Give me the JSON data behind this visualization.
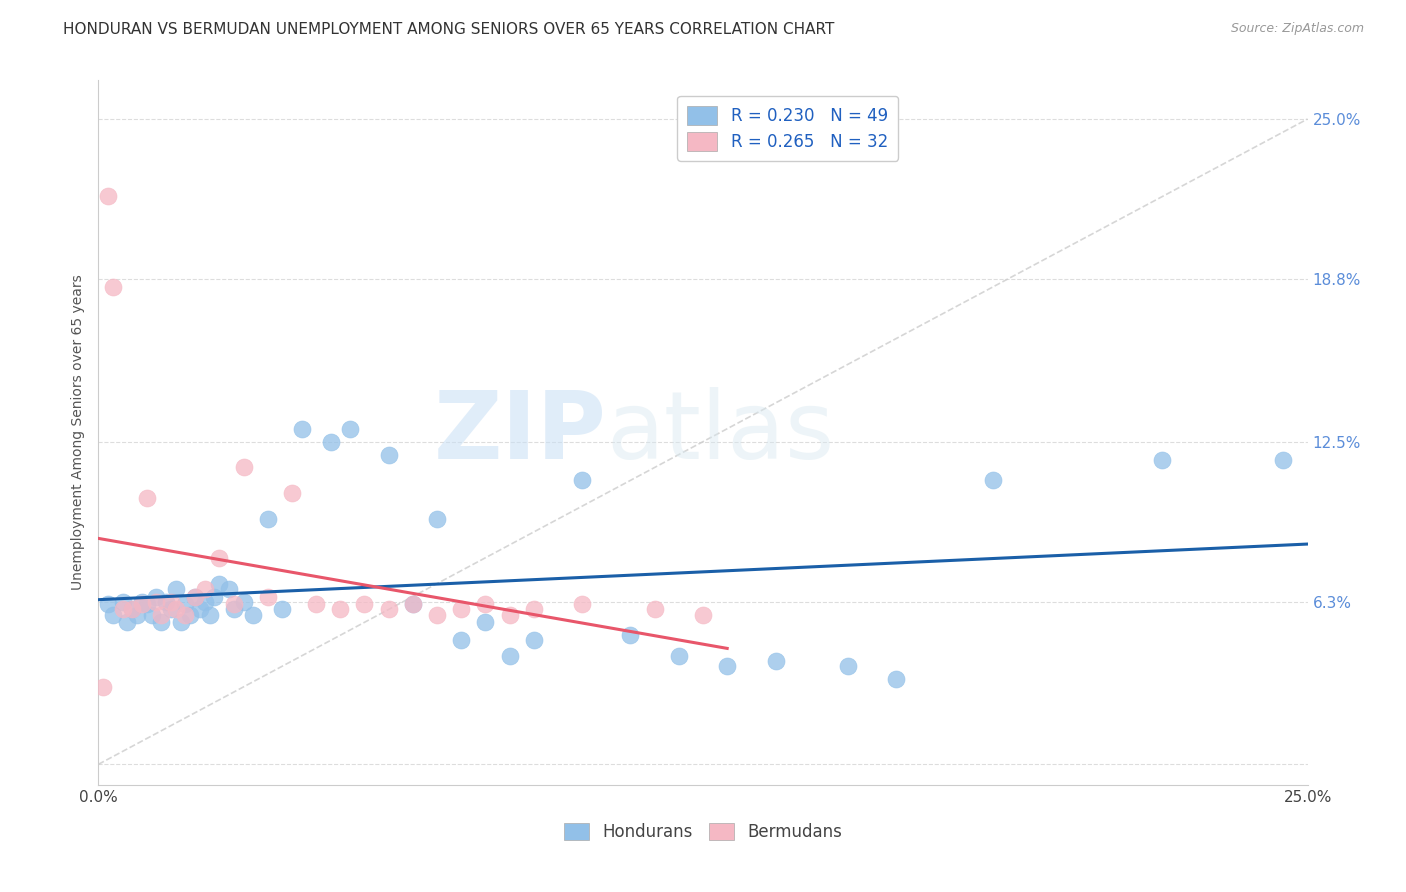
{
  "title": "HONDURAN VS BERMUDAN UNEMPLOYMENT AMONG SENIORS OVER 65 YEARS CORRELATION CHART",
  "source": "Source: ZipAtlas.com",
  "ylabel": "Unemployment Among Seniors over 65 years",
  "xlim": [
    0.0,
    0.25
  ],
  "ylim": [
    -0.008,
    0.265
  ],
  "xticks": [
    0.0,
    0.05,
    0.1,
    0.15,
    0.2,
    0.25
  ],
  "xticklabels": [
    "0.0%",
    "",
    "",
    "",
    "",
    "25.0%"
  ],
  "ytick_positions": [
    0.0,
    0.063,
    0.125,
    0.188,
    0.25
  ],
  "yticklabels_right": [
    "",
    "6.3%",
    "12.5%",
    "18.8%",
    "25.0%"
  ],
  "watermark_zip": "ZIP",
  "watermark_atlas": "atlas",
  "legend_R_honduran": "R = 0.230",
  "legend_N_honduran": "N = 49",
  "legend_R_bermudan": "R = 0.265",
  "legend_N_bermudan": "N = 32",
  "honduran_color": "#92c0e8",
  "bermudan_color": "#f5b8c4",
  "trend_honduran_color": "#1a5fa8",
  "trend_bermudan_color": "#e8566a",
  "diagonal_color": "#cccccc",
  "background_color": "#ffffff",
  "grid_color": "#dddddd",
  "hondurans_x": [
    0.002,
    0.003,
    0.005,
    0.006,
    0.007,
    0.008,
    0.009,
    0.01,
    0.011,
    0.012,
    0.013,
    0.014,
    0.015,
    0.016,
    0.017,
    0.018,
    0.019,
    0.02,
    0.021,
    0.022,
    0.023,
    0.024,
    0.025,
    0.027,
    0.028,
    0.03,
    0.032,
    0.035,
    0.038,
    0.042,
    0.048,
    0.052,
    0.06,
    0.065,
    0.07,
    0.075,
    0.08,
    0.085,
    0.09,
    0.1,
    0.11,
    0.12,
    0.13,
    0.14,
    0.155,
    0.165,
    0.185,
    0.22,
    0.245
  ],
  "hondurans_y": [
    0.062,
    0.058,
    0.063,
    0.055,
    0.06,
    0.058,
    0.063,
    0.062,
    0.058,
    0.065,
    0.055,
    0.063,
    0.06,
    0.068,
    0.055,
    0.062,
    0.058,
    0.065,
    0.06,
    0.063,
    0.058,
    0.065,
    0.07,
    0.068,
    0.06,
    0.063,
    0.058,
    0.095,
    0.06,
    0.13,
    0.125,
    0.13,
    0.12,
    0.062,
    0.095,
    0.048,
    0.055,
    0.042,
    0.048,
    0.11,
    0.05,
    0.042,
    0.038,
    0.04,
    0.038,
    0.033,
    0.11,
    0.118,
    0.118
  ],
  "bermudans_x": [
    0.001,
    0.002,
    0.003,
    0.005,
    0.007,
    0.009,
    0.01,
    0.012,
    0.013,
    0.015,
    0.016,
    0.018,
    0.02,
    0.022,
    0.025,
    0.028,
    0.03,
    0.035,
    0.04,
    0.045,
    0.05,
    0.055,
    0.06,
    0.065,
    0.07,
    0.075,
    0.08,
    0.085,
    0.09,
    0.1,
    0.115,
    0.125
  ],
  "bermudans_y": [
    0.03,
    0.22,
    0.185,
    0.06,
    0.06,
    0.062,
    0.103,
    0.063,
    0.058,
    0.063,
    0.06,
    0.058,
    0.065,
    0.068,
    0.08,
    0.062,
    0.115,
    0.065,
    0.105,
    0.062,
    0.06,
    0.062,
    0.06,
    0.062,
    0.058,
    0.06,
    0.062,
    0.058,
    0.06,
    0.062,
    0.06,
    0.058
  ],
  "bermudan_trend_x": [
    0.0,
    0.13
  ],
  "title_fontsize": 11,
  "axis_label_fontsize": 10,
  "tick_fontsize": 11,
  "legend_fontsize": 12
}
